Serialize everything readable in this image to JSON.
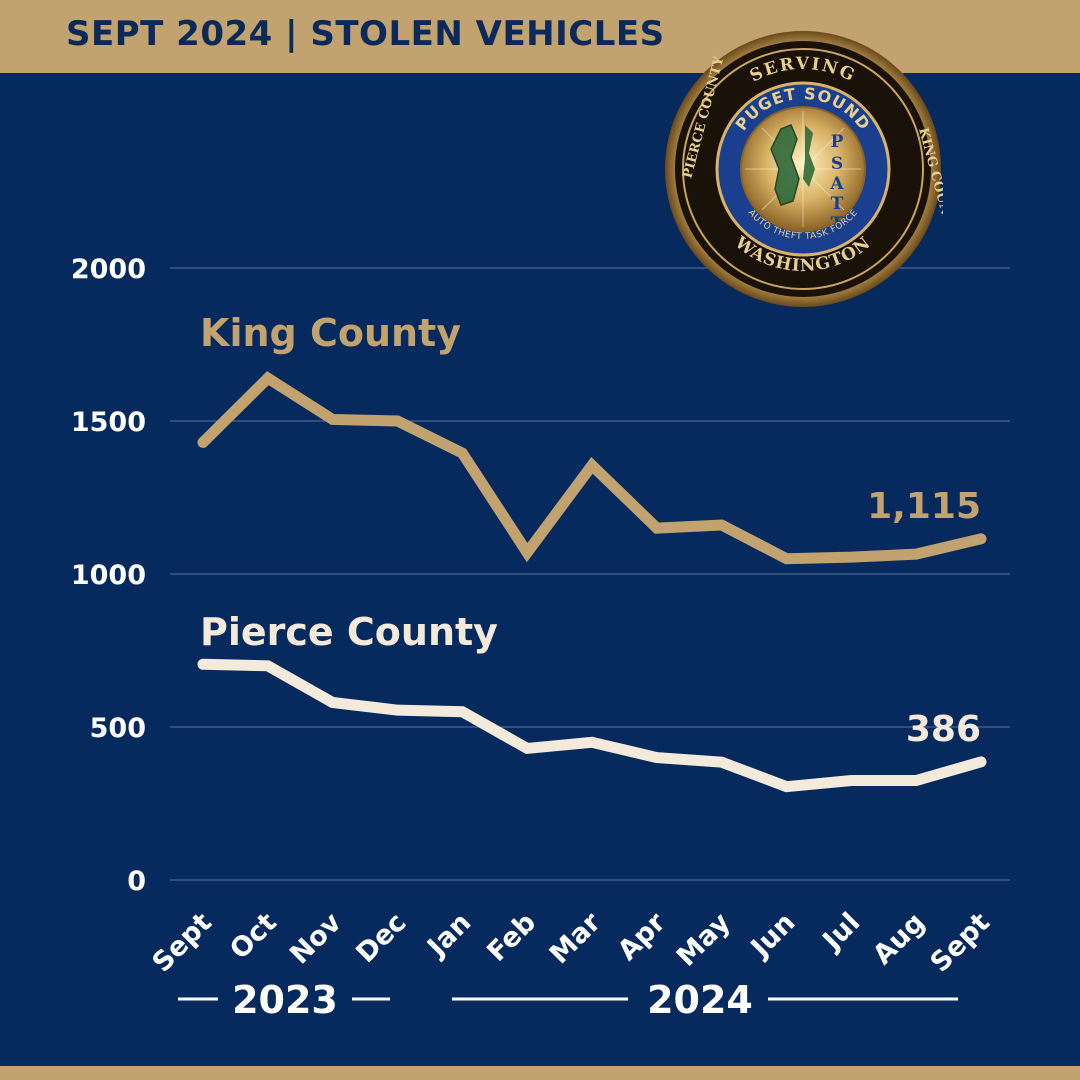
{
  "header": {
    "title": "SEPT 2024 | STOLEN VEHICLES"
  },
  "seal": {
    "text_top": "SERVING",
    "text_left": "PIERCE COUNTY",
    "text_right": "KING COUNTY",
    "text_bottom": "WASHINGTON",
    "text_inner_top": "PUGET SOUND",
    "text_inner_bottom": "AUTO THEFT TASK FORCE",
    "acronym": "PSATT"
  },
  "colors": {
    "background": "#062a5e",
    "gold": "#c2a26e",
    "cream": "#f3eadb",
    "navy_text": "#0b2a5a"
  },
  "chart_data": {
    "type": "line",
    "categories": [
      "Sept",
      "Oct",
      "Nov",
      "Dec",
      "Jan",
      "Feb",
      "Mar",
      "Apr",
      "May",
      "Jun",
      "Jul",
      "Aug",
      "Sept"
    ],
    "year_groups": [
      {
        "label": "2023",
        "start": 0,
        "end": 3
      },
      {
        "label": "2024",
        "start": 4,
        "end": 12
      }
    ],
    "ylim": [
      0,
      2000
    ],
    "yticks": [
      0,
      500,
      1000,
      1500,
      2000
    ],
    "grid": true,
    "series": [
      {
        "name": "King County",
        "color": "#c2a26e",
        "values": [
          1430,
          1640,
          1505,
          1500,
          1395,
          1070,
          1355,
          1150,
          1160,
          1050,
          1055,
          1065,
          1115
        ],
        "end_label": "1,115"
      },
      {
        "name": "Pierce County",
        "color": "#f3eadb",
        "values": [
          705,
          700,
          580,
          555,
          550,
          430,
          450,
          400,
          385,
          305,
          325,
          325,
          386
        ],
        "end_label": "386"
      }
    ]
  }
}
